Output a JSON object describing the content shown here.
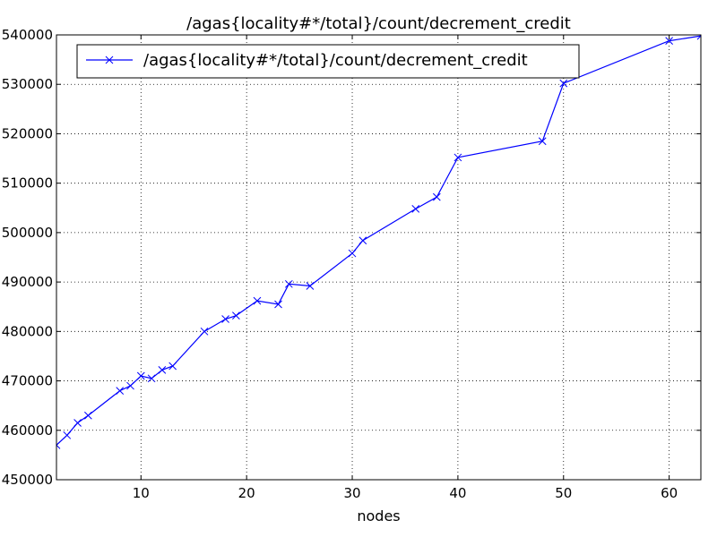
{
  "chart_data": {
    "type": "line",
    "title": "/agas{locality#*/total}/count/decrement_credit",
    "xlabel": "nodes",
    "ylabel": "",
    "xlim": [
      2,
      63
    ],
    "ylim": [
      450000,
      540000
    ],
    "x_ticks": [
      10,
      20,
      30,
      40,
      50,
      60
    ],
    "y_ticks": [
      450000,
      460000,
      470000,
      480000,
      490000,
      500000,
      510000,
      520000,
      530000,
      540000
    ],
    "grid": true,
    "legend_position": "top-left",
    "marker": "x",
    "series": [
      {
        "name": "/agas{locality#*/total}/count/decrement_credit",
        "color": "#0000ff",
        "x": [
          2,
          3,
          4,
          5,
          8,
          9,
          10,
          11,
          12,
          13,
          16,
          18,
          19,
          21,
          23,
          24,
          26,
          30,
          31,
          36,
          38,
          40,
          48,
          50,
          60,
          63
        ],
        "y": [
          457000,
          459000,
          461500,
          463000,
          468000,
          469000,
          471000,
          470500,
          472200,
          473000,
          480000,
          482500,
          483200,
          486200,
          485500,
          489600,
          489200,
          495800,
          498400,
          504800,
          507200,
          515200,
          518500,
          530200,
          538800,
          539800
        ]
      }
    ]
  }
}
